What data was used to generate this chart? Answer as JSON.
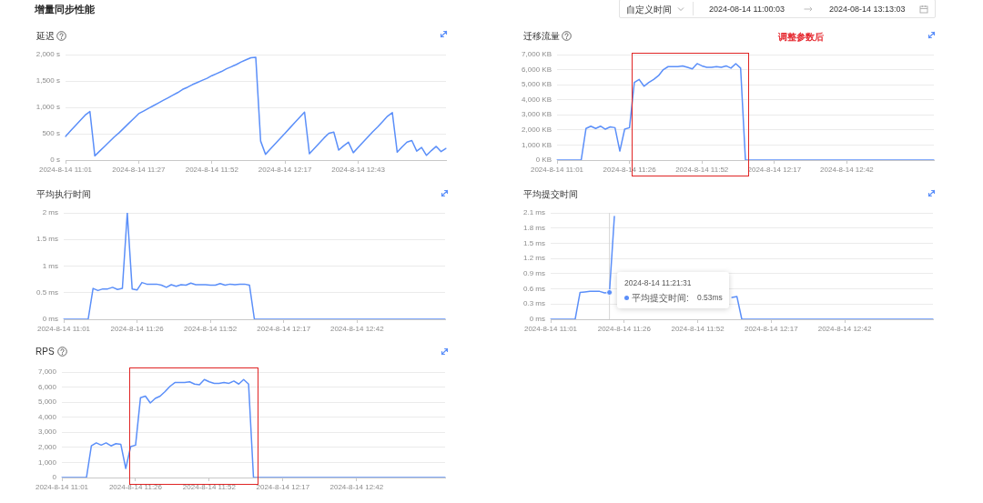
{
  "chart_data": [
    {
      "type": "other",
      "title": "增量同步性能",
      "annotations": [
        "自定义时间",
        "2024-08-14 11:00:03",
        "2024-08-14 13:13:03"
      ]
    },
    {
      "type": "line",
      "title": "延迟",
      "color": "#5b8ff9",
      "grid": "y",
      "categories": [
        "2024-8-14 11:01",
        null,
        null,
        null,
        null,
        null,
        null,
        null,
        null,
        null,
        null,
        null,
        null,
        null,
        null,
        "2024-8-14 11:27",
        null,
        null,
        null,
        null,
        null,
        null,
        null,
        null,
        null,
        null,
        null,
        null,
        null,
        null,
        "2024-8-14 11:52",
        null,
        null,
        null,
        null,
        null,
        null,
        null,
        null,
        null,
        null,
        null,
        null,
        null,
        null,
        "2024-8-14 12:17",
        null,
        null,
        null,
        null,
        null,
        null,
        null,
        null,
        null,
        null,
        null,
        null,
        null,
        null,
        "2024-8-14 12:43",
        null,
        null,
        null,
        null,
        null,
        null,
        null,
        null,
        null,
        null,
        null,
        null,
        null,
        null,
        null,
        null,
        null,
        null
      ],
      "values": [
        450,
        550,
        650,
        750,
        850,
        920,
        80,
        170,
        260,
        350,
        440,
        520,
        610,
        700,
        790,
        880,
        930,
        980,
        1030,
        1080,
        1130,
        1180,
        1230,
        1280,
        1340,
        1380,
        1430,
        1470,
        1510,
        1550,
        1600,
        1640,
        1680,
        1730,
        1770,
        1810,
        1860,
        1900,
        1940,
        1950,
        360,
        110,
        210,
        310,
        410,
        510,
        610,
        710,
        810,
        910,
        120,
        220,
        320,
        420,
        510,
        530,
        190,
        270,
        340,
        140,
        240,
        340,
        440,
        540,
        630,
        730,
        830,
        900,
        150,
        250,
        340,
        370,
        170,
        240,
        90,
        180,
        260,
        160,
        220
      ],
      "ylim": [
        0,
        2000
      ],
      "yticks": [
        {
          "value": 0,
          "label": "0 s"
        },
        {
          "value": 500,
          "label": "500 s"
        },
        {
          "value": 1000,
          "label": "1,000 s"
        },
        {
          "value": 1500,
          "label": "1,500 s"
        },
        {
          "value": 2000,
          "label": "2,000 s"
        }
      ]
    },
    {
      "type": "line",
      "title": "迁移流量",
      "color": "#5b8ff9",
      "grid": "y",
      "annotations": [
        "调整参数后"
      ],
      "categories": [
        "2024-8-14 11:01",
        null,
        null,
        null,
        null,
        null,
        null,
        null,
        null,
        null,
        null,
        null,
        null,
        null,
        null,
        "2024-8-14 11:26",
        null,
        null,
        null,
        null,
        null,
        null,
        null,
        null,
        null,
        null,
        null,
        null,
        null,
        null,
        "2024-8-14 11:52",
        null,
        null,
        null,
        null,
        null,
        null,
        null,
        null,
        null,
        null,
        null,
        null,
        null,
        null,
        "2024-8-14 12:17",
        null,
        null,
        null,
        null,
        null,
        null,
        null,
        null,
        null,
        null,
        null,
        null,
        null,
        null,
        "2024-8-14 12:42",
        null,
        null,
        null,
        null,
        null,
        null,
        null,
        null,
        null,
        null,
        null,
        null,
        null,
        null,
        null,
        null,
        null,
        null
      ],
      "values": [
        0,
        0,
        0,
        0,
        0,
        0,
        2100,
        2250,
        2100,
        2250,
        2050,
        2200,
        2150,
        600,
        2050,
        2150,
        5150,
        5350,
        4900,
        5150,
        5350,
        5600,
        6000,
        6200,
        6200,
        6200,
        6250,
        6150,
        6050,
        6400,
        6250,
        6150,
        6150,
        6200,
        6150,
        6250,
        6100,
        6400,
        6100,
        0,
        0,
        0,
        0,
        0,
        0,
        0,
        0,
        0,
        0,
        0,
        0,
        0,
        0,
        0,
        0,
        0,
        0,
        0,
        0,
        0,
        0,
        0,
        0,
        0,
        0,
        0,
        0,
        0,
        0,
        0,
        0,
        0,
        0,
        0,
        0,
        0,
        0,
        0,
        0
      ],
      "ylim": [
        0,
        7000
      ],
      "yticks": [
        {
          "value": 0,
          "label": "0 KB"
        },
        {
          "value": 1000,
          "label": "1,000 KB"
        },
        {
          "value": 2000,
          "label": "2,000 KB"
        },
        {
          "value": 3000,
          "label": "3,000 KB"
        },
        {
          "value": 4000,
          "label": "4,000 KB"
        },
        {
          "value": 5000,
          "label": "5,000 KB"
        },
        {
          "value": 6000,
          "label": "6,000 KB"
        },
        {
          "value": 7000,
          "label": "7,000 KB"
        }
      ]
    },
    {
      "type": "line",
      "title": "平均执行时间",
      "color": "#5b8ff9",
      "grid": "y",
      "categories": [
        "2024-8-14 11:01",
        null,
        null,
        null,
        null,
        null,
        null,
        null,
        null,
        null,
        null,
        null,
        null,
        null,
        null,
        "2024-8-14 11:26",
        null,
        null,
        null,
        null,
        null,
        null,
        null,
        null,
        null,
        null,
        null,
        null,
        null,
        null,
        "2024-8-14 11:52",
        null,
        null,
        null,
        null,
        null,
        null,
        null,
        null,
        null,
        null,
        null,
        null,
        null,
        null,
        "2024-8-14 12:17",
        null,
        null,
        null,
        null,
        null,
        null,
        null,
        null,
        null,
        null,
        null,
        null,
        null,
        null,
        "2024-8-14 12:42",
        null,
        null,
        null,
        null,
        null,
        null,
        null,
        null,
        null,
        null,
        null,
        null,
        null,
        null,
        null,
        null,
        null,
        null
      ],
      "values": [
        0,
        0,
        0,
        0,
        0,
        0,
        0.58,
        0.54,
        0.57,
        0.57,
        0.6,
        0.56,
        0.58,
        2,
        0.57,
        0.55,
        0.69,
        0.66,
        0.66,
        0.66,
        0.64,
        0.6,
        0.65,
        0.62,
        0.65,
        0.64,
        0.68,
        0.65,
        0.65,
        0.65,
        0.64,
        0.64,
        0.67,
        0.64,
        0.66,
        0.65,
        0.66,
        0.66,
        0.64,
        0,
        0,
        0,
        0,
        0,
        0,
        0,
        0,
        0,
        0,
        0,
        0,
        0,
        0,
        0,
        0,
        0,
        0,
        0,
        0,
        0,
        0,
        0,
        0,
        0,
        0,
        0,
        0,
        0,
        0,
        0,
        0,
        0,
        0,
        0,
        0,
        0,
        0,
        0,
        0
      ],
      "ylim": [
        0,
        2
      ],
      "yticks": [
        {
          "value": 0,
          "label": "0 ms"
        },
        {
          "value": 0.5,
          "label": "0.5 ms"
        },
        {
          "value": 1,
          "label": "1 ms"
        },
        {
          "value": 1.5,
          "label": "1.5 ms"
        },
        {
          "value": 2,
          "label": "2 ms"
        }
      ]
    },
    {
      "type": "line",
      "title": "平均提交时间",
      "color": "#5b8ff9",
      "grid": "y",
      "annotations": [
        "2024-8-14 11:21:31",
        "平均提交时间:",
        "0.53ms"
      ],
      "categories": [
        "2024-8-14 11:01",
        null,
        null,
        null,
        null,
        null,
        null,
        null,
        null,
        null,
        null,
        null,
        null,
        null,
        null,
        "2024-8-14 11:26",
        null,
        null,
        null,
        null,
        null,
        null,
        null,
        null,
        null,
        null,
        null,
        null,
        null,
        null,
        "2024-8-14 11:52",
        null,
        null,
        null,
        null,
        null,
        null,
        null,
        null,
        null,
        null,
        null,
        null,
        null,
        null,
        "2024-8-14 12:17",
        null,
        null,
        null,
        null,
        null,
        null,
        null,
        null,
        null,
        null,
        null,
        null,
        null,
        null,
        "2024-8-14 12:42",
        null,
        null,
        null,
        null,
        null,
        null,
        null,
        null,
        null,
        null,
        null,
        null,
        null,
        null,
        null,
        null,
        null,
        null
      ],
      "values": [
        0,
        0,
        0,
        0,
        0,
        0,
        0.53,
        0.54,
        0.55,
        0.55,
        0.55,
        0.52,
        0.53,
        2.03,
        null,
        null,
        null,
        null,
        null,
        null,
        null,
        null,
        null,
        null,
        null,
        null,
        null,
        null,
        null,
        null,
        null,
        null,
        null,
        null,
        null,
        null,
        null,
        0.43,
        0.45,
        0,
        0,
        0,
        0,
        0,
        0,
        0,
        0,
        0,
        0,
        0,
        0,
        0,
        0,
        0,
        0,
        0,
        0,
        0,
        0,
        0,
        0,
        0,
        0,
        0,
        0,
        0,
        0,
        0,
        0,
        0,
        0,
        0,
        0,
        0,
        0,
        0,
        0,
        0,
        0
      ],
      "ylim": [
        0,
        2.1
      ],
      "yticks": [
        {
          "value": 0,
          "label": "0 ms"
        },
        {
          "value": 0.3,
          "label": "0.3 ms"
        },
        {
          "value": 0.6,
          "label": "0.6 ms"
        },
        {
          "value": 0.9,
          "label": "0.9 ms"
        },
        {
          "value": 1.2,
          "label": "1.2 ms"
        },
        {
          "value": 1.5,
          "label": "1.5 ms"
        },
        {
          "value": 1.8,
          "label": "1.8 ms"
        },
        {
          "value": 2.1,
          "label": "2.1 ms"
        }
      ]
    },
    {
      "type": "line",
      "title": "RPS",
      "color": "#5b8ff9",
      "grid": "y",
      "categories": [
        "2024-8-14 11:01",
        null,
        null,
        null,
        null,
        null,
        null,
        null,
        null,
        null,
        null,
        null,
        null,
        null,
        null,
        "2024-8-14 11:26",
        null,
        null,
        null,
        null,
        null,
        null,
        null,
        null,
        null,
        null,
        null,
        null,
        null,
        null,
        "2024-8-14 11:52",
        null,
        null,
        null,
        null,
        null,
        null,
        null,
        null,
        null,
        null,
        null,
        null,
        null,
        null,
        "2024-8-14 12:17",
        null,
        null,
        null,
        null,
        null,
        null,
        null,
        null,
        null,
        null,
        null,
        null,
        null,
        null,
        "2024-8-14 12:42",
        null,
        null,
        null,
        null,
        null,
        null,
        null,
        null,
        null,
        null,
        null,
        null,
        null,
        null,
        null,
        null,
        null,
        null
      ],
      "values": [
        0,
        0,
        0,
        0,
        0,
        0,
        2100,
        2300,
        2150,
        2300,
        2100,
        2250,
        2200,
        600,
        2050,
        2150,
        5300,
        5400,
        4950,
        5250,
        5400,
        5700,
        6050,
        6300,
        6300,
        6300,
        6350,
        6200,
        6150,
        6500,
        6350,
        6250,
        6250,
        6300,
        6250,
        6400,
        6200,
        6500,
        6200,
        0,
        0,
        0,
        0,
        0,
        0,
        0,
        0,
        0,
        0,
        0,
        0,
        0,
        0,
        0,
        0,
        0,
        0,
        0,
        0,
        0,
        0,
        0,
        0,
        0,
        0,
        0,
        0,
        0,
        0,
        0,
        0,
        0,
        0,
        0,
        0,
        0,
        0,
        0,
        0
      ],
      "ylim": [
        0,
        7000
      ],
      "yticks": [
        0,
        {
          "value": 1000,
          "label": "1,000"
        },
        {
          "value": 2000,
          "label": "2,000"
        },
        {
          "value": 3000,
          "label": "3,000"
        },
        {
          "value": 4000,
          "label": "4,000"
        },
        {
          "value": 5000,
          "label": "5,000"
        },
        {
          "value": 6000,
          "label": "6,000"
        },
        {
          "value": 7000,
          "label": "7,000"
        }
      ]
    }
  ]
}
